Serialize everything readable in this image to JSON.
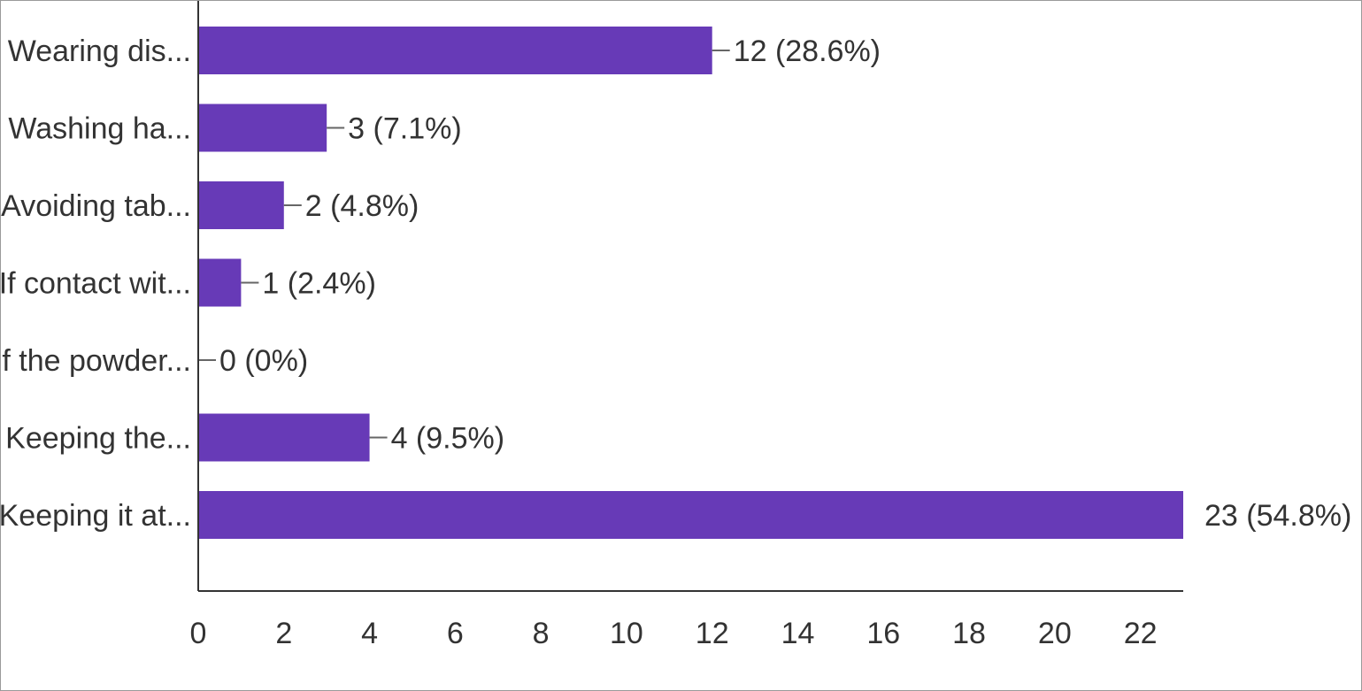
{
  "chart_data": {
    "type": "bar",
    "orientation": "horizontal",
    "categories": [
      "Wearing dis...",
      "Washing ha...",
      "Avoiding tab...",
      "If contact wit...",
      "If the powder...",
      "Keeping the...",
      "Keeping it at..."
    ],
    "values": [
      12,
      3,
      2,
      1,
      0,
      4,
      23
    ],
    "data_labels": [
      "12 (28.6%)",
      "3 (7.1%)",
      "2 (4.8%)",
      "1 (2.4%)",
      "0 (0%)",
      "4 (9.5%)",
      "23 (54.8%)"
    ],
    "xlim": [
      0,
      23
    ],
    "x_ticks": [
      0,
      2,
      4,
      6,
      8,
      10,
      12,
      14,
      16,
      18,
      20,
      22
    ],
    "grid": false,
    "bar_color": "#673ab7",
    "axis_color": "#333333",
    "leader_color": "#666666"
  }
}
